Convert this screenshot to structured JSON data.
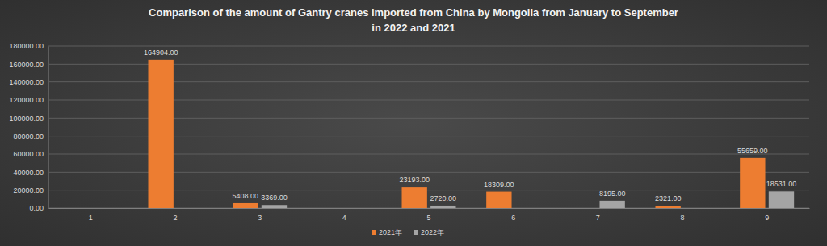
{
  "chart_data": {
    "type": "bar",
    "title": "Comparison of the amount of Gantry cranes imported from China by Mongolia from January to September\nin 2022 and 2021",
    "categories": [
      "1",
      "2",
      "3",
      "4",
      "5",
      "6",
      "7",
      "8",
      "9"
    ],
    "series": [
      {
        "name": "2021年",
        "color": "#ed7d31",
        "values": [
          null,
          164904,
          5408,
          null,
          23193,
          18309,
          null,
          2321,
          55659
        ],
        "value_labels": [
          null,
          "164904.00",
          "5408.00",
          null,
          "23193.00",
          "18309.00",
          null,
          "2321.00",
          "55659.00"
        ]
      },
      {
        "name": "2022年",
        "color": "#a5a5a5",
        "values": [
          null,
          null,
          3369,
          null,
          2720,
          null,
          8195,
          null,
          18531
        ],
        "value_labels": [
          null,
          null,
          "3369.00",
          null,
          "2720.00",
          null,
          "8195.00",
          null,
          "18531.00"
        ]
      }
    ],
    "ylim": [
      0,
      180000
    ],
    "yticks": [
      {
        "value": 0,
        "label": "0.00"
      },
      {
        "value": 20000,
        "label": "20000.00"
      },
      {
        "value": 40000,
        "label": "40000.00"
      },
      {
        "value": 60000,
        "label": "60000.00"
      },
      {
        "value": 80000,
        "label": "80000.00"
      },
      {
        "value": 100000,
        "label": "100000.00"
      },
      {
        "value": 120000,
        "label": "120000.00"
      },
      {
        "value": 140000,
        "label": "140000.00"
      },
      {
        "value": 160000,
        "label": "160000.00"
      },
      {
        "value": 180000,
        "label": "180000.00"
      }
    ],
    "grid": true,
    "legend": "bottom",
    "data_labels": true
  }
}
